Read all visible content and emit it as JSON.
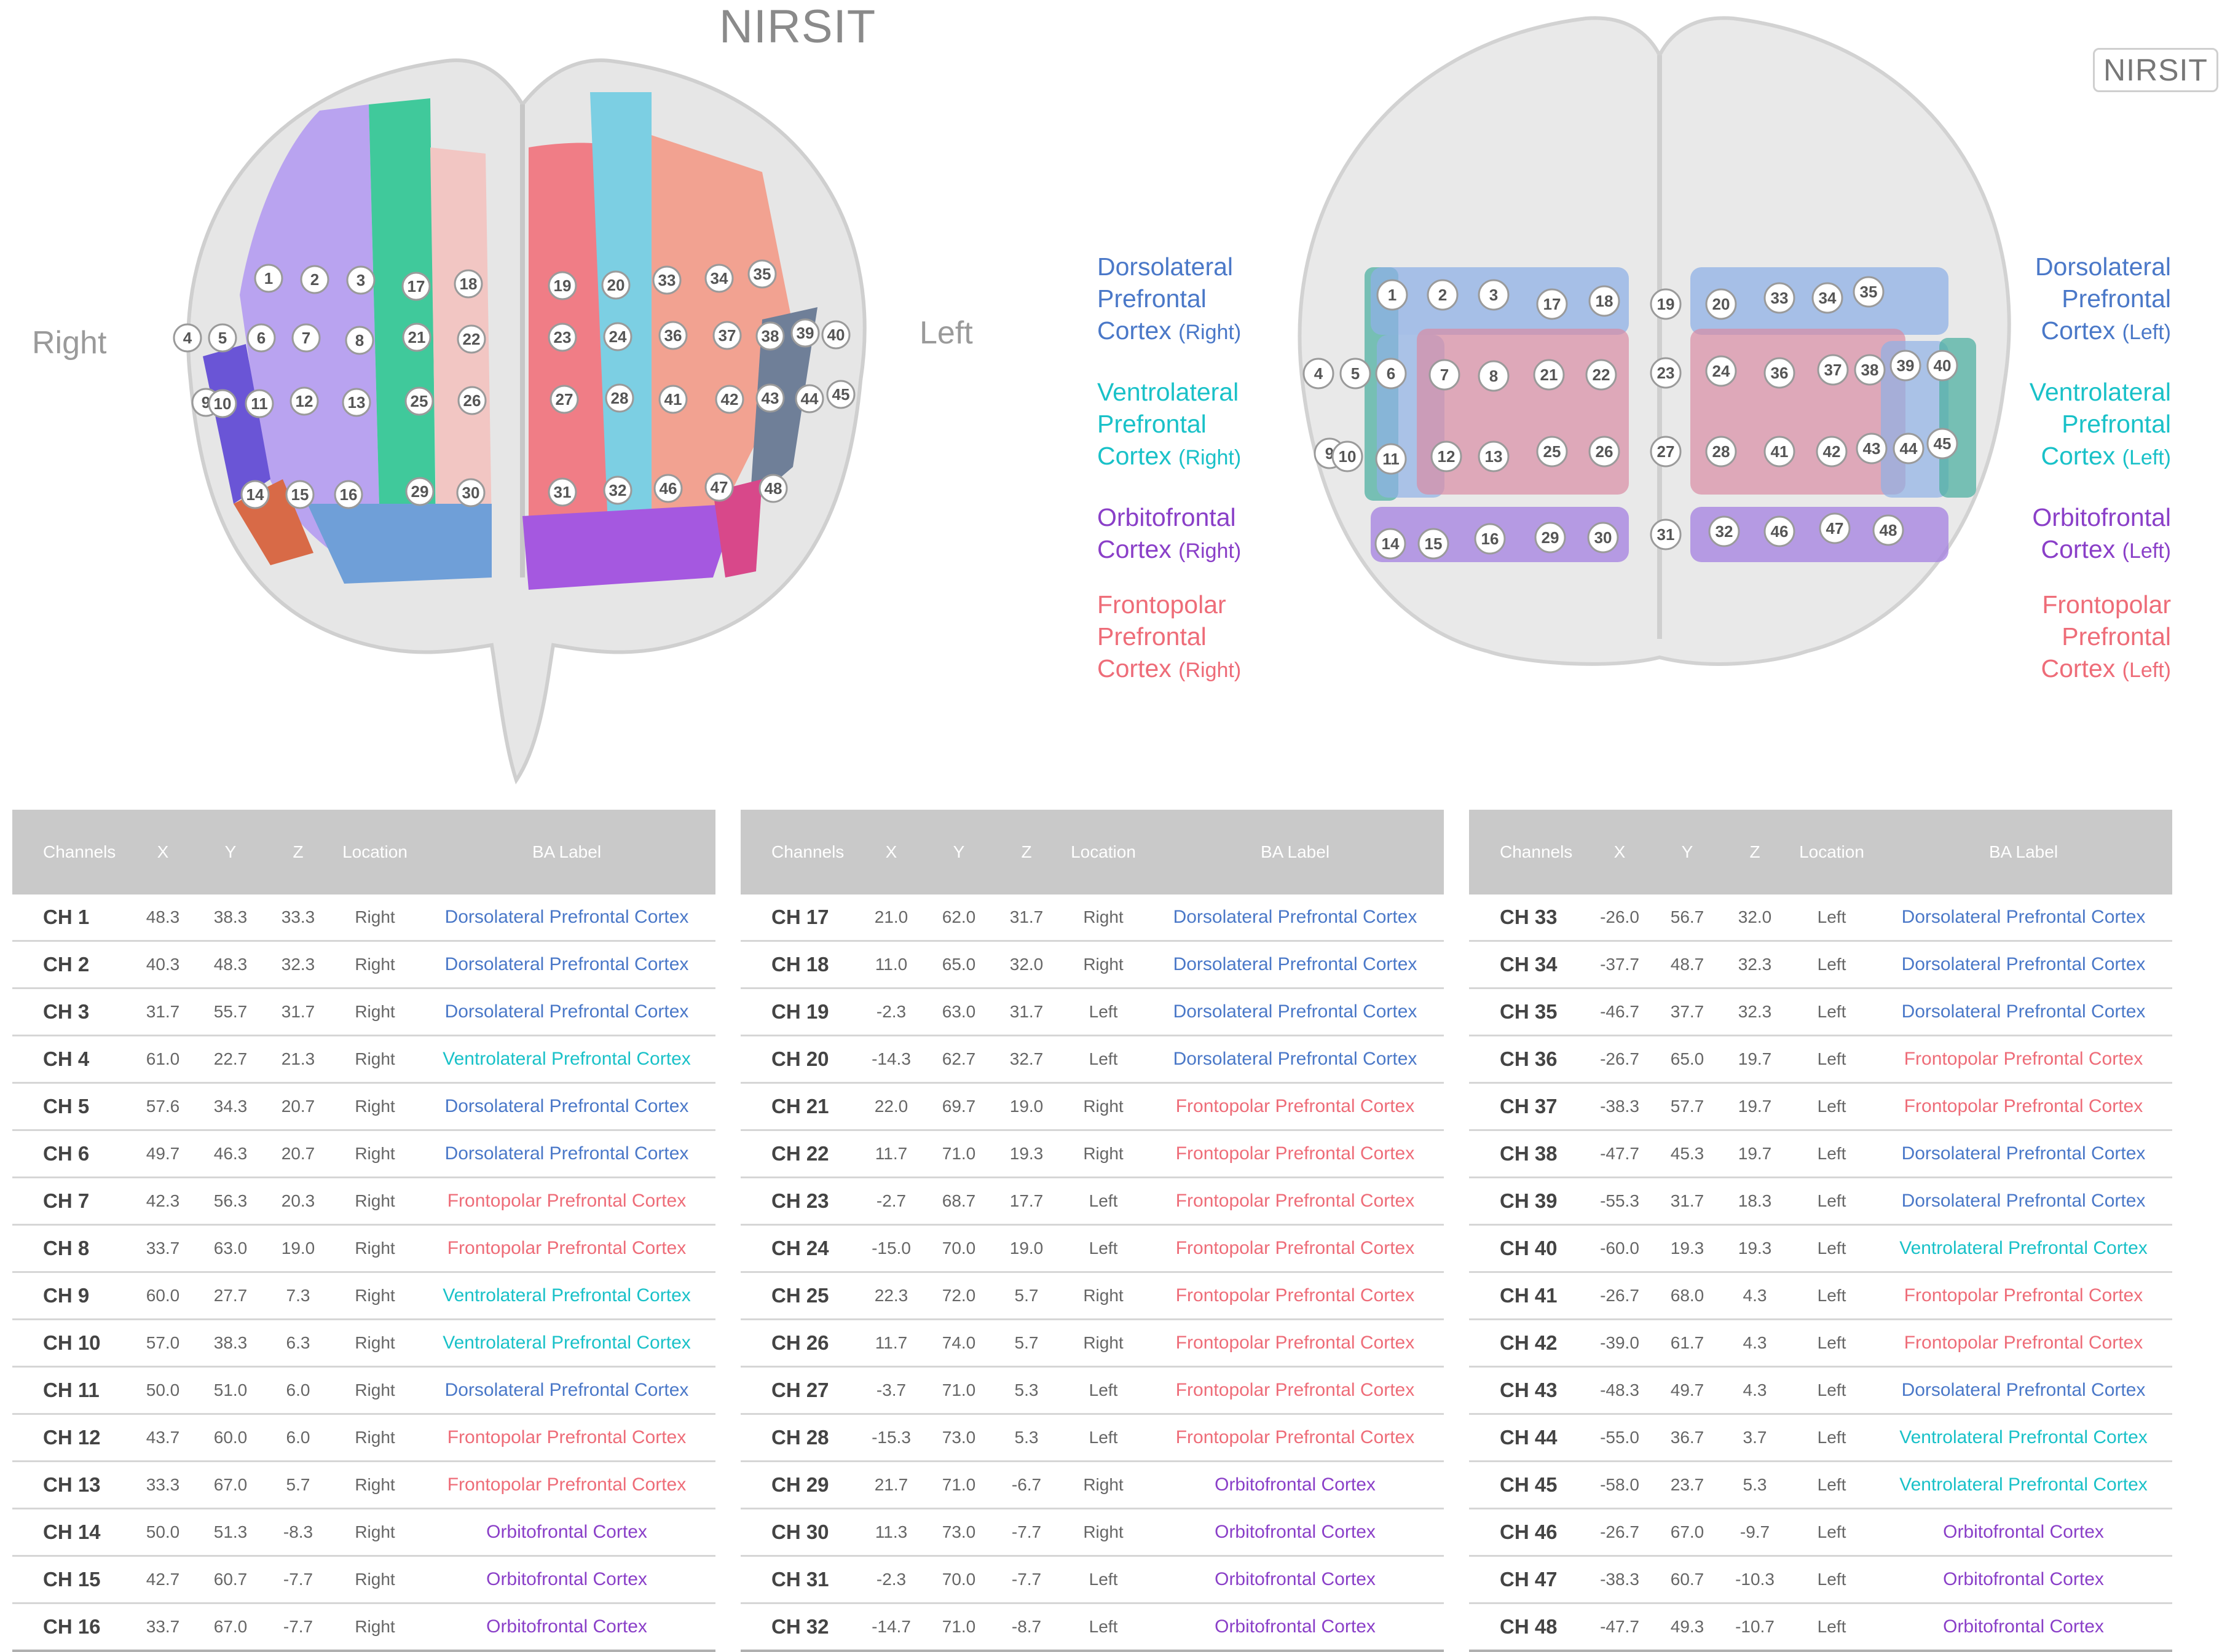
{
  "brand": {
    "top_left": "NIRSIT",
    "top_right": "NIRSIT"
  },
  "sides": {
    "right": "Right",
    "left": "Left"
  },
  "legend": {
    "right_side": [
      {
        "line1": "Dorsolateral",
        "line2": "Prefrontal",
        "line3": "Cortex",
        "side": "(Right)",
        "color": "#4a78c8"
      },
      {
        "line1": "Ventrolateral",
        "line2": "Prefrontal",
        "line3": "Cortex",
        "side": "(Right)",
        "color": "#19c1c8"
      },
      {
        "line1": "Orbitofrontal",
        "line2": "Cortex",
        "line3": "",
        "side": "(Right)",
        "color": "#8a3fc8"
      },
      {
        "line1": "Frontopolar",
        "line2": "Prefrontal",
        "line3": "Cortex",
        "side": "(Right)",
        "color": "#ee6c78"
      }
    ],
    "left_side": [
      {
        "line1": "Dorsolateral",
        "line2": "Prefrontal",
        "line3": "Cortex",
        "side": "(Left)",
        "color": "#4a78c8"
      },
      {
        "line1": "Ventrolateral",
        "line2": "Prefrontal",
        "line3": "Cortex",
        "side": "(Left)",
        "color": "#19c1c8"
      },
      {
        "line1": "Orbitofrontal",
        "line2": "Cortex",
        "line3": "",
        "side": "(Left)",
        "color": "#8a3fc8"
      },
      {
        "line1": "Frontopolar",
        "line2": "Prefrontal",
        "line3": "Cortex",
        "side": "(Left)",
        "color": "#ee6c78"
      }
    ]
  },
  "channel_labels": [
    "1",
    "2",
    "3",
    "4",
    "5",
    "6",
    "7",
    "8",
    "9",
    "10",
    "11",
    "12",
    "13",
    "14",
    "15",
    "16",
    "17",
    "18",
    "19",
    "20",
    "21",
    "22",
    "23",
    "24",
    "25",
    "26",
    "27",
    "28",
    "29",
    "30",
    "31",
    "32",
    "33",
    "34",
    "35",
    "36",
    "37",
    "38",
    "39",
    "40",
    "41",
    "42",
    "43",
    "44",
    "45",
    "46",
    "47",
    "48"
  ],
  "table": {
    "headers": [
      "Channels",
      "X",
      "Y",
      "Z",
      "Location",
      "BA Label"
    ],
    "colors": {
      "Dorsolateral Prefrontal Cortex": "#4a78c8",
      "Ventrolateral Prefrontal Cortex": "#19c1c8",
      "Frontopolar Prefrontal Cortex": "#ee6c78",
      "Orbitofrontal Cortex": "#8a3fc8"
    },
    "rows": [
      [
        "CH 1",
        "48.3",
        "38.3",
        "33.3",
        "Right",
        "Dorsolateral Prefrontal Cortex"
      ],
      [
        "CH 2",
        "40.3",
        "48.3",
        "32.3",
        "Right",
        "Dorsolateral Prefrontal Cortex"
      ],
      [
        "CH 3",
        "31.7",
        "55.7",
        "31.7",
        "Right",
        "Dorsolateral Prefrontal Cortex"
      ],
      [
        "CH 4",
        "61.0",
        "22.7",
        "21.3",
        "Right",
        "Ventrolateral Prefrontal Cortex"
      ],
      [
        "CH 5",
        "57.6",
        "34.3",
        "20.7",
        "Right",
        "Dorsolateral Prefrontal Cortex"
      ],
      [
        "CH 6",
        "49.7",
        "46.3",
        "20.7",
        "Right",
        "Dorsolateral Prefrontal Cortex"
      ],
      [
        "CH 7",
        "42.3",
        "56.3",
        "20.3",
        "Right",
        "Frontopolar Prefrontal Cortex"
      ],
      [
        "CH 8",
        "33.7",
        "63.0",
        "19.0",
        "Right",
        "Frontopolar Prefrontal Cortex"
      ],
      [
        "CH 9",
        "60.0",
        "27.7",
        "7.3",
        "Right",
        "Ventrolateral Prefrontal Cortex"
      ],
      [
        "CH 10",
        "57.0",
        "38.3",
        "6.3",
        "Right",
        "Ventrolateral Prefrontal Cortex"
      ],
      [
        "CH 11",
        "50.0",
        "51.0",
        "6.0",
        "Right",
        "Dorsolateral Prefrontal Cortex"
      ],
      [
        "CH 12",
        "43.7",
        "60.0",
        "6.0",
        "Right",
        "Frontopolar Prefrontal Cortex"
      ],
      [
        "CH 13",
        "33.3",
        "67.0",
        "5.7",
        "Right",
        "Frontopolar Prefrontal Cortex"
      ],
      [
        "CH 14",
        "50.0",
        "51.3",
        "-8.3",
        "Right",
        "Orbitofrontal Cortex"
      ],
      [
        "CH 15",
        "42.7",
        "60.7",
        "-7.7",
        "Right",
        "Orbitofrontal Cortex"
      ],
      [
        "CH 16",
        "33.7",
        "67.0",
        "-7.7",
        "Right",
        "Orbitofrontal Cortex"
      ],
      [
        "CH 17",
        "21.0",
        "62.0",
        "31.7",
        "Right",
        "Dorsolateral Prefrontal Cortex"
      ],
      [
        "CH 18",
        "11.0",
        "65.0",
        "32.0",
        "Right",
        "Dorsolateral Prefrontal Cortex"
      ],
      [
        "CH 19",
        "-2.3",
        "63.0",
        "31.7",
        "Left",
        "Dorsolateral Prefrontal Cortex"
      ],
      [
        "CH 20",
        "-14.3",
        "62.7",
        "32.7",
        "Left",
        "Dorsolateral Prefrontal Cortex"
      ],
      [
        "CH 21",
        "22.0",
        "69.7",
        "19.0",
        "Right",
        "Frontopolar Prefrontal Cortex"
      ],
      [
        "CH 22",
        "11.7",
        "71.0",
        "19.3",
        "Right",
        "Frontopolar Prefrontal Cortex"
      ],
      [
        "CH 23",
        "-2.7",
        "68.7",
        "17.7",
        "Left",
        "Frontopolar Prefrontal Cortex"
      ],
      [
        "CH 24",
        "-15.0",
        "70.0",
        "19.0",
        "Left",
        "Frontopolar Prefrontal Cortex"
      ],
      [
        "CH 25",
        "22.3",
        "72.0",
        "5.7",
        "Right",
        "Frontopolar Prefrontal Cortex"
      ],
      [
        "CH 26",
        "11.7",
        "74.0",
        "5.7",
        "Right",
        "Frontopolar Prefrontal Cortex"
      ],
      [
        "CH 27",
        "-3.7",
        "71.0",
        "5.3",
        "Left",
        "Frontopolar Prefrontal Cortex"
      ],
      [
        "CH 28",
        "-15.3",
        "73.0",
        "5.3",
        "Left",
        "Frontopolar Prefrontal Cortex"
      ],
      [
        "CH 29",
        "21.7",
        "71.0",
        "-6.7",
        "Right",
        "Orbitofrontal Cortex"
      ],
      [
        "CH 30",
        "11.3",
        "73.0",
        "-7.7",
        "Right",
        "Orbitofrontal Cortex"
      ],
      [
        "CH 31",
        "-2.3",
        "70.0",
        "-7.7",
        "Left",
        "Orbitofrontal Cortex"
      ],
      [
        "CH 32",
        "-14.7",
        "71.0",
        "-8.7",
        "Left",
        "Orbitofrontal Cortex"
      ],
      [
        "CH 33",
        "-26.0",
        "56.7",
        "32.0",
        "Left",
        "Dorsolateral Prefrontal Cortex"
      ],
      [
        "CH 34",
        "-37.7",
        "48.7",
        "32.3",
        "Left",
        "Dorsolateral Prefrontal Cortex"
      ],
      [
        "CH 35",
        "-46.7",
        "37.7",
        "32.3",
        "Left",
        "Dorsolateral Prefrontal Cortex"
      ],
      [
        "CH 36",
        "-26.7",
        "65.0",
        "19.7",
        "Left",
        "Frontopolar Prefrontal Cortex"
      ],
      [
        "CH 37",
        "-38.3",
        "57.7",
        "19.7",
        "Left",
        "Frontopolar Prefrontal Cortex"
      ],
      [
        "CH 38",
        "-47.7",
        "45.3",
        "19.7",
        "Left",
        "Dorsolateral Prefrontal Cortex"
      ],
      [
        "CH 39",
        "-55.3",
        "31.7",
        "18.3",
        "Left",
        "Dorsolateral Prefrontal Cortex"
      ],
      [
        "CH 40",
        "-60.0",
        "19.3",
        "19.3",
        "Left",
        "Ventrolateral Prefrontal Cortex"
      ],
      [
        "CH 41",
        "-26.7",
        "68.0",
        "4.3",
        "Left",
        "Frontopolar Prefrontal Cortex"
      ],
      [
        "CH 42",
        "-39.0",
        "61.7",
        "4.3",
        "Left",
        "Frontopolar Prefrontal Cortex"
      ],
      [
        "CH 43",
        "-48.3",
        "49.7",
        "4.3",
        "Left",
        "Dorsolateral Prefrontal Cortex"
      ],
      [
        "CH 44",
        "-55.0",
        "36.7",
        "3.7",
        "Left",
        "Ventrolateral Prefrontal Cortex"
      ],
      [
        "CH 45",
        "-58.0",
        "23.7",
        "5.3",
        "Left",
        "Ventrolateral Prefrontal Cortex"
      ],
      [
        "CH 46",
        "-26.7",
        "67.0",
        "-9.7",
        "Left",
        "Orbitofrontal Cortex"
      ],
      [
        "CH 47",
        "-38.3",
        "60.7",
        "-10.3",
        "Left",
        "Orbitofrontal Cortex"
      ],
      [
        "CH 48",
        "-47.7",
        "49.3",
        "-10.7",
        "Left",
        "Orbitofrontal Cortex"
      ]
    ]
  }
}
